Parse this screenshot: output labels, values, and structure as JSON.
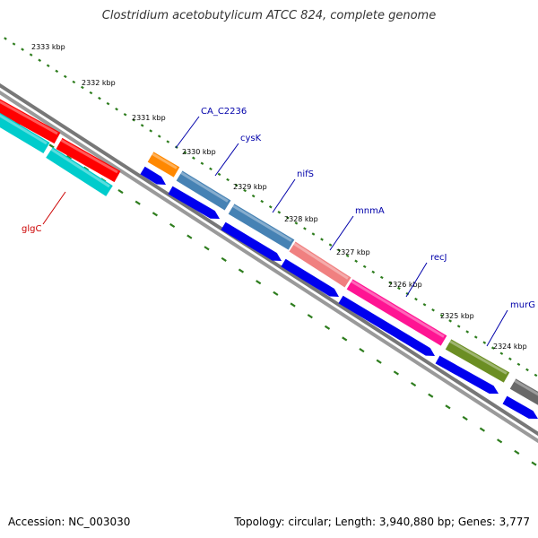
{
  "title": "Clostridium acetobutylicum ATCC 824, complete genome",
  "footer": {
    "accession": "Accession: NC_003030",
    "summary": "Topology: circular; Length: 3,940,880 bp; Genes: 3,777"
  },
  "colors": {
    "backbone": "#8a8a8a",
    "tick_marks": "#2e7d1e",
    "cds_arrow": "#0000ee",
    "label_blue": "#0000aa",
    "label_red": "#cc0000"
  },
  "scale_ticks": [
    "2333 kbp",
    "2332 kbp",
    "2331 kbp",
    "2330 kbp",
    "2329 kbp",
    "2328 kbp",
    "2327 kbp",
    "2326 kbp",
    "2325 kbp",
    "2324 kbp"
  ],
  "genes": [
    {
      "name": "glgC",
      "label_color": "#cc0000",
      "bar_color": "#ff0000",
      "strand": "+"
    },
    {
      "name": "",
      "label_color": "",
      "bar_color": "#00cccc",
      "strand": "+"
    },
    {
      "name": "CA_C2236",
      "label_color": "#0000aa",
      "bar_color": "#ff8800",
      "strand": "-"
    },
    {
      "name": "cysK",
      "label_color": "#0000aa",
      "bar_color": "#4682b4",
      "strand": "-"
    },
    {
      "name": "nifS",
      "label_color": "#0000aa",
      "bar_color": "#4682b4",
      "strand": "-"
    },
    {
      "name": "mnmA",
      "label_color": "#0000aa",
      "bar_color": "#f08080",
      "strand": "-"
    },
    {
      "name": "recJ",
      "label_color": "#0000aa",
      "bar_color": "#ff1493",
      "strand": "-"
    },
    {
      "name": "murG",
      "label_color": "#0000aa",
      "bar_color": "#6b8e23",
      "strand": "-"
    },
    {
      "name": "",
      "label_color": "",
      "bar_color": "#696969",
      "strand": "-"
    }
  ]
}
